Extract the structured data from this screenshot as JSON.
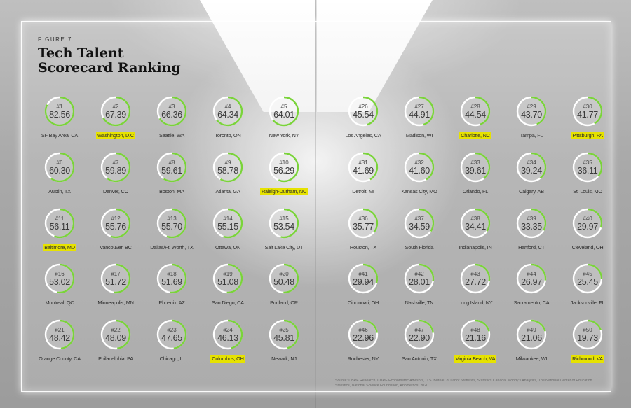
{
  "figure_label": "FIGURE 7",
  "title_line1": "Tech Talent",
  "title_line2": "Scorecard Ranking",
  "source": "Source: CBRE Research, CBRE Econometric Advisors, U.S. Bureau of Labor Statistics, Statistics Canada, Moody's Analytics, The National Center of Education Statistics, National Science Foundation, Anometrics, 2020.",
  "colors": {
    "ring": "#7ad33a",
    "highlight": "#e6e200"
  },
  "chart_data": {
    "type": "table",
    "title": "Tech Talent Scorecard Ranking",
    "max_score": 100,
    "markets": [
      {
        "rank": "#1",
        "score": "82.56",
        "city": "SF Bay Area, CA",
        "highlight": false
      },
      {
        "rank": "#2",
        "score": "67.39",
        "city": "Washington, D.C",
        "highlight": true
      },
      {
        "rank": "#3",
        "score": "66.36",
        "city": "Seattle, WA",
        "highlight": false
      },
      {
        "rank": "#4",
        "score": "64.34",
        "city": "Toronto, ON",
        "highlight": false
      },
      {
        "rank": "#5",
        "score": "64.01",
        "city": "New York, NY",
        "highlight": false
      },
      {
        "rank": "#6",
        "score": "60.30",
        "city": "Austin, TX",
        "highlight": false
      },
      {
        "rank": "#7",
        "score": "59.89",
        "city": "Denver, CO",
        "highlight": false
      },
      {
        "rank": "#8",
        "score": "59.61",
        "city": "Boston, MA",
        "highlight": false
      },
      {
        "rank": "#9",
        "score": "58.78",
        "city": "Atlanta, GA",
        "highlight": false
      },
      {
        "rank": "#10",
        "score": "56.29",
        "city": "Raleigh-Durham, NC",
        "highlight": true
      },
      {
        "rank": "#11",
        "score": "56.11",
        "city": "Baltimore, MD",
        "highlight": true
      },
      {
        "rank": "#12",
        "score": "55.76",
        "city": "Vancouver, BC",
        "highlight": false
      },
      {
        "rank": "#13",
        "score": "55.70",
        "city": "Dallas/Ft. Worth, TX",
        "highlight": false
      },
      {
        "rank": "#14",
        "score": "55.15",
        "city": "Ottawa, ON",
        "highlight": false
      },
      {
        "rank": "#15",
        "score": "53.54",
        "city": "Salt Lake City, UT",
        "highlight": false
      },
      {
        "rank": "#16",
        "score": "53.02",
        "city": "Montreal, QC",
        "highlight": false
      },
      {
        "rank": "#17",
        "score": "51.72",
        "city": "Minneapolis, MN",
        "highlight": false
      },
      {
        "rank": "#18",
        "score": "51.69",
        "city": "Phoenix, AZ",
        "highlight": false
      },
      {
        "rank": "#19",
        "score": "51.08",
        "city": "San Diego, CA",
        "highlight": false
      },
      {
        "rank": "#20",
        "score": "50.48",
        "city": "Portland, OR",
        "highlight": false
      },
      {
        "rank": "#21",
        "score": "48.42",
        "city": "Orange County, CA",
        "highlight": false
      },
      {
        "rank": "#22",
        "score": "48.09",
        "city": "Philadelphia, PA",
        "highlight": false
      },
      {
        "rank": "#23",
        "score": "47.65",
        "city": "Chicago, IL",
        "highlight": false
      },
      {
        "rank": "#24",
        "score": "46.13",
        "city": "Columbus, OH",
        "highlight": true
      },
      {
        "rank": "#25",
        "score": "45.81",
        "city": "Newark, NJ",
        "highlight": false
      },
      {
        "rank": "#26",
        "score": "45.54",
        "city": "Los Angeles, CA",
        "highlight": false
      },
      {
        "rank": "#27",
        "score": "44.91",
        "city": "Madison, WI",
        "highlight": false
      },
      {
        "rank": "#28",
        "score": "44.54",
        "city": "Charlotte, NC",
        "highlight": true
      },
      {
        "rank": "#29",
        "score": "43.70",
        "city": "Tampa, FL",
        "highlight": false
      },
      {
        "rank": "#30",
        "score": "41.77",
        "city": "Pittsburgh, PA",
        "highlight": true
      },
      {
        "rank": "#31",
        "score": "41.69",
        "city": "Detroit, MI",
        "highlight": false
      },
      {
        "rank": "#32",
        "score": "41.60",
        "city": "Kansas City, MO",
        "highlight": false
      },
      {
        "rank": "#33",
        "score": "39.61",
        "city": "Orlando, FL",
        "highlight": false
      },
      {
        "rank": "#34",
        "score": "39.24",
        "city": "Calgary, AB",
        "highlight": false
      },
      {
        "rank": "#35",
        "score": "36.11",
        "city": "St. Louis, MO",
        "highlight": false
      },
      {
        "rank": "#36",
        "score": "35.77",
        "city": "Houston, TX",
        "highlight": false
      },
      {
        "rank": "#37",
        "score": "34.59",
        "city": "South Florida",
        "highlight": false
      },
      {
        "rank": "#38",
        "score": "34.41",
        "city": "Indianapolis, IN",
        "highlight": false
      },
      {
        "rank": "#39",
        "score": "33.35",
        "city": "Hartford, CT",
        "highlight": false
      },
      {
        "rank": "#40",
        "score": "29.97",
        "city": "Cleveland, OH",
        "highlight": false
      },
      {
        "rank": "#41",
        "score": "29.94",
        "city": "Cincinnati, OH",
        "highlight": false
      },
      {
        "rank": "#42",
        "score": "28.01",
        "city": "Nashville, TN",
        "highlight": false
      },
      {
        "rank": "#43",
        "score": "27.72",
        "city": "Long Island, NY",
        "highlight": false
      },
      {
        "rank": "#44",
        "score": "26.97",
        "city": "Sacramento, CA",
        "highlight": false
      },
      {
        "rank": "#45",
        "score": "25.45",
        "city": "Jacksonville, FL",
        "highlight": false
      },
      {
        "rank": "#46",
        "score": "22.96",
        "city": "Rochester, NY",
        "highlight": false
      },
      {
        "rank": "#47",
        "score": "22.90",
        "city": "San Antonio, TX",
        "highlight": false
      },
      {
        "rank": "#48",
        "score": "21.16",
        "city": "Virginia Beach, VA",
        "highlight": true
      },
      {
        "rank": "#49",
        "score": "21.06",
        "city": "Milwaukee, WI",
        "highlight": false
      },
      {
        "rank": "#50",
        "score": "19.73",
        "city": "Richmond, VA",
        "highlight": true
      }
    ]
  }
}
